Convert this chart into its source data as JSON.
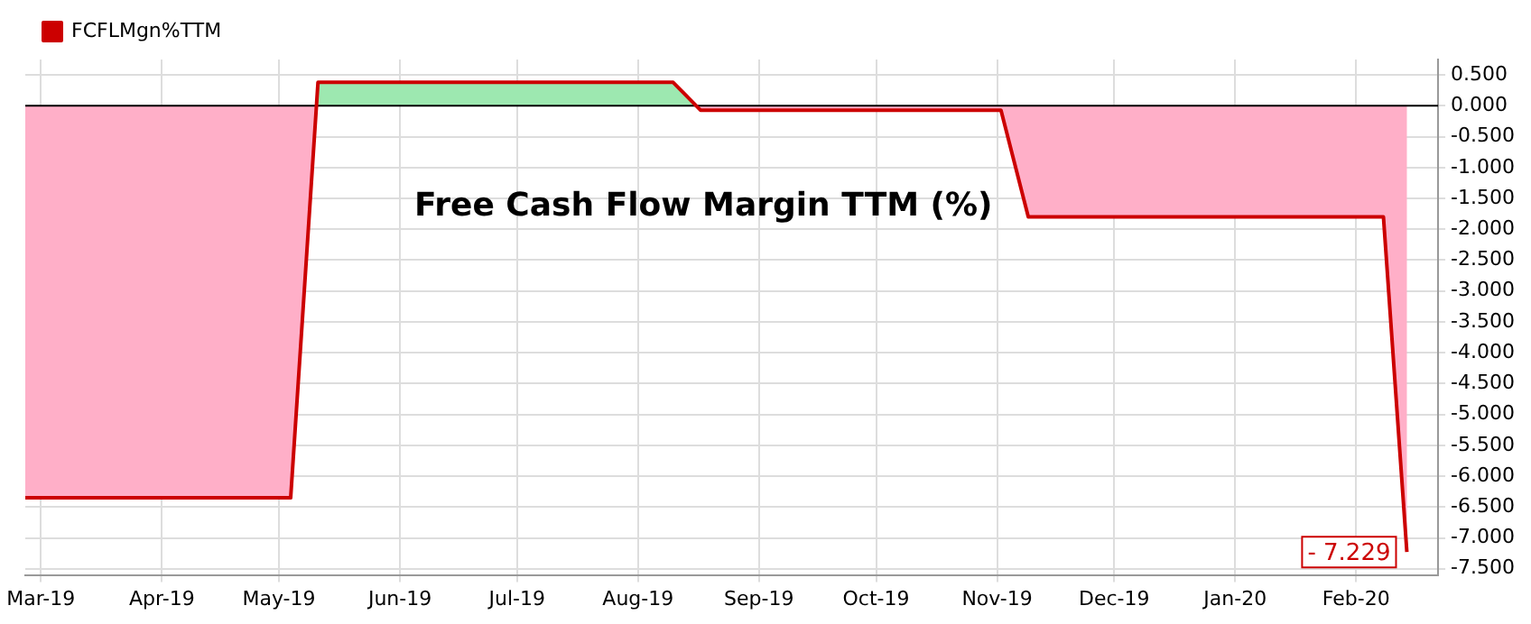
{
  "chart_data": {
    "type": "area",
    "title": "Free Cash Flow Margin TTM (%)",
    "x": [
      "2019-02-25",
      "2019-05-04",
      "2019-05-11",
      "2019-08-10",
      "2019-08-17",
      "2019-11-02",
      "2019-11-09",
      "2020-02-08",
      "2020-02-14"
    ],
    "series": [
      {
        "name": "FCFLMgn%TTM",
        "color": "#cc0000",
        "values": [
          -6.35,
          -6.35,
          0.38,
          0.38,
          -0.07,
          -0.07,
          -1.8,
          -1.8,
          -7.229
        ],
        "value_labels": [
          null,
          null,
          null,
          null,
          null,
          null,
          null,
          null,
          "- 7.229"
        ]
      }
    ],
    "xlim": [
      "2019-02-25",
      "2020-02-22"
    ],
    "xticks": [
      {
        "value": "2019-03-01",
        "label": "Mar-19"
      },
      {
        "value": "2019-04-01",
        "label": "Apr-19"
      },
      {
        "value": "2019-05-01",
        "label": "May-19"
      },
      {
        "value": "2019-06-01",
        "label": "Jun-19"
      },
      {
        "value": "2019-07-01",
        "label": "Jul-19"
      },
      {
        "value": "2019-08-01",
        "label": "Aug-19"
      },
      {
        "value": "2019-09-01",
        "label": "Sep-19"
      },
      {
        "value": "2019-10-01",
        "label": "Oct-19"
      },
      {
        "value": "2019-11-01",
        "label": "Nov-19"
      },
      {
        "value": "2019-12-01",
        "label": "Dec-19"
      },
      {
        "value": "2020-01-01",
        "label": "Jan-20"
      },
      {
        "value": "2020-02-01",
        "label": "Feb-20"
      }
    ],
    "ylim": [
      -7.6,
      0.75
    ],
    "yticks": [
      {
        "value": -7.5,
        "label": "-7.500"
      },
      {
        "value": -7,
        "label": "-7.000"
      },
      {
        "value": -6.5,
        "label": "-6.500"
      },
      {
        "value": -6,
        "label": "-6.000"
      },
      {
        "value": -5.5,
        "label": "-5.500"
      },
      {
        "value": -5,
        "label": "-5.000"
      },
      {
        "value": -4.5,
        "label": "-4.500"
      },
      {
        "value": -4,
        "label": "-4.000"
      },
      {
        "value": -3.5,
        "label": "-3.500"
      },
      {
        "value": -3,
        "label": "-3.000"
      },
      {
        "value": -2.5,
        "label": "-2.500"
      },
      {
        "value": -2,
        "label": "-2.000"
      },
      {
        "value": -1.5,
        "label": "-1.500"
      },
      {
        "value": -1,
        "label": "-1.000"
      },
      {
        "value": -0.5,
        "label": "-0.500"
      },
      {
        "value": 0,
        "label": "0.000"
      },
      {
        "value": 0.5,
        "label": "0.500"
      }
    ],
    "ref_lines": [
      {
        "axis": "y",
        "value": 0,
        "color": "#000000"
      }
    ],
    "grid": true,
    "legend": "top left"
  }
}
